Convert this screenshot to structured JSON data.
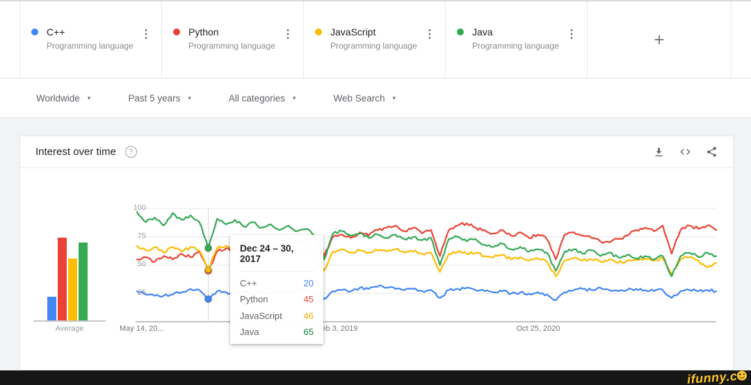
{
  "query_cards": [
    {
      "term": "C++",
      "subtitle": "Programming language",
      "color": "#4285f4"
    },
    {
      "term": "Python",
      "subtitle": "Programming language",
      "color": "#ea4335"
    },
    {
      "term": "JavaScript",
      "subtitle": "Programming language",
      "color": "#fbbc04"
    },
    {
      "term": "Java",
      "subtitle": "Programming language",
      "color": "#34a853"
    }
  ],
  "add_card": {
    "plus_label": "+"
  },
  "filters": [
    {
      "label": "Worldwide"
    },
    {
      "label": "Past 5 years"
    },
    {
      "label": "All categories"
    },
    {
      "label": "Web Search"
    }
  ],
  "panel": {
    "title": "Interest over time",
    "help_glyph": "?",
    "actions": [
      "download",
      "embed",
      "share"
    ]
  },
  "watermark": {
    "text": "ifunny.c",
    "color": "#fcc62c"
  },
  "chart_data": {
    "type": "line",
    "title": "Interest over time",
    "x_axis": {
      "ticks": [
        "May 14, 20...",
        "Feb 3, 2019",
        "Oct 25, 2020"
      ],
      "tick_weeks": [
        0,
        90,
        180
      ],
      "total_weeks": 260
    },
    "y_axis": {
      "ticks": [
        25,
        50,
        75,
        100
      ],
      "range": [
        0,
        100
      ],
      "grid": true
    },
    "tooltip": {
      "date_label": "Dec 24 – 30, 2017",
      "week": 32,
      "rows": [
        {
          "name": "C++",
          "value": 20,
          "color": "#4285f4"
        },
        {
          "name": "Python",
          "value": 45,
          "color": "#ea4335"
        },
        {
          "name": "JavaScript",
          "value": 46,
          "color": "#f9ab00"
        },
        {
          "name": "Java",
          "value": 65,
          "color": "#188038"
        }
      ]
    },
    "average_bars": {
      "label": "Average",
      "values": [
        {
          "name": "C++",
          "value": 22,
          "color": "#4285f4"
        },
        {
          "name": "Python",
          "value": 74,
          "color": "#ea4335"
        },
        {
          "name": "JavaScript",
          "value": 56,
          "color": "#fbbc04"
        },
        {
          "name": "Java",
          "value": 70,
          "color": "#34a853"
        }
      ]
    },
    "series": [
      {
        "name": "C++",
        "color": "#4285f4",
        "points": [
          [
            0,
            27
          ],
          [
            4,
            24
          ],
          [
            8,
            23
          ],
          [
            12,
            23
          ],
          [
            16,
            24
          ],
          [
            20,
            26
          ],
          [
            24,
            29
          ],
          [
            28,
            28
          ],
          [
            32,
            20
          ],
          [
            36,
            27
          ],
          [
            40,
            26
          ],
          [
            44,
            25
          ],
          [
            48,
            26
          ],
          [
            52,
            25
          ],
          [
            56,
            26
          ],
          [
            60,
            25
          ],
          [
            64,
            27
          ],
          [
            68,
            26
          ],
          [
            72,
            28
          ],
          [
            76,
            27
          ],
          [
            80,
            26
          ],
          [
            84,
            20
          ],
          [
            88,
            27
          ],
          [
            92,
            28
          ],
          [
            96,
            27
          ],
          [
            100,
            30
          ],
          [
            104,
            29
          ],
          [
            108,
            31
          ],
          [
            112,
            30
          ],
          [
            116,
            29
          ],
          [
            120,
            28
          ],
          [
            124,
            29
          ],
          [
            128,
            27
          ],
          [
            132,
            28
          ],
          [
            136,
            21
          ],
          [
            140,
            28
          ],
          [
            144,
            29
          ],
          [
            148,
            30
          ],
          [
            152,
            28
          ],
          [
            156,
            27
          ],
          [
            160,
            26
          ],
          [
            164,
            27
          ],
          [
            168,
            25
          ],
          [
            172,
            26
          ],
          [
            176,
            25
          ],
          [
            180,
            26
          ],
          [
            184,
            24
          ],
          [
            188,
            19
          ],
          [
            192,
            26
          ],
          [
            196,
            28
          ],
          [
            200,
            29
          ],
          [
            204,
            28
          ],
          [
            208,
            30
          ],
          [
            212,
            28
          ],
          [
            216,
            27
          ],
          [
            220,
            28
          ],
          [
            224,
            29
          ],
          [
            228,
            28
          ],
          [
            232,
            27
          ],
          [
            236,
            28
          ],
          [
            240,
            21
          ],
          [
            244,
            27
          ],
          [
            248,
            28
          ],
          [
            252,
            27
          ],
          [
            256,
            28
          ],
          [
            260,
            27
          ]
        ]
      },
      {
        "name": "Python",
        "color": "#ea4335",
        "points": [
          [
            0,
            55
          ],
          [
            4,
            57
          ],
          [
            8,
            53
          ],
          [
            12,
            58
          ],
          [
            16,
            55
          ],
          [
            20,
            60
          ],
          [
            24,
            57
          ],
          [
            28,
            62
          ],
          [
            32,
            45
          ],
          [
            36,
            62
          ],
          [
            40,
            65
          ],
          [
            44,
            62
          ],
          [
            48,
            66
          ],
          [
            52,
            63
          ],
          [
            56,
            67
          ],
          [
            60,
            64
          ],
          [
            64,
            68
          ],
          [
            68,
            66
          ],
          [
            72,
            70
          ],
          [
            76,
            73
          ],
          [
            80,
            76
          ],
          [
            84,
            58
          ],
          [
            88,
            75
          ],
          [
            92,
            77
          ],
          [
            96,
            74
          ],
          [
            100,
            79
          ],
          [
            104,
            76
          ],
          [
            108,
            81
          ],
          [
            112,
            83
          ],
          [
            116,
            85
          ],
          [
            120,
            80
          ],
          [
            124,
            83
          ],
          [
            128,
            78
          ],
          [
            132,
            81
          ],
          [
            136,
            58
          ],
          [
            140,
            81
          ],
          [
            144,
            85
          ],
          [
            148,
            87
          ],
          [
            152,
            83
          ],
          [
            156,
            81
          ],
          [
            160,
            78
          ],
          [
            164,
            81
          ],
          [
            168,
            76
          ],
          [
            172,
            79
          ],
          [
            176,
            74
          ],
          [
            180,
            77
          ],
          [
            184,
            73
          ],
          [
            188,
            55
          ],
          [
            192,
            77
          ],
          [
            196,
            79
          ],
          [
            200,
            76
          ],
          [
            204,
            74
          ],
          [
            208,
            71
          ],
          [
            212,
            70
          ],
          [
            216,
            73
          ],
          [
            220,
            76
          ],
          [
            224,
            81
          ],
          [
            228,
            83
          ],
          [
            232,
            80
          ],
          [
            236,
            85
          ],
          [
            240,
            60
          ],
          [
            244,
            81
          ],
          [
            248,
            85
          ],
          [
            252,
            82
          ],
          [
            256,
            85
          ],
          [
            260,
            81
          ]
        ]
      },
      {
        "name": "JavaScript",
        "color": "#fbbc04",
        "points": [
          [
            0,
            67
          ],
          [
            4,
            63
          ],
          [
            8,
            66
          ],
          [
            12,
            61
          ],
          [
            16,
            66
          ],
          [
            20,
            62
          ],
          [
            24,
            66
          ],
          [
            28,
            63
          ],
          [
            32,
            46
          ],
          [
            36,
            65
          ],
          [
            40,
            67
          ],
          [
            44,
            64
          ],
          [
            48,
            66
          ],
          [
            52,
            63
          ],
          [
            56,
            65
          ],
          [
            60,
            62
          ],
          [
            64,
            65
          ],
          [
            68,
            62
          ],
          [
            72,
            64
          ],
          [
            76,
            62
          ],
          [
            80,
            63
          ],
          [
            84,
            45
          ],
          [
            88,
            62
          ],
          [
            92,
            64
          ],
          [
            96,
            61
          ],
          [
            100,
            63
          ],
          [
            104,
            61
          ],
          [
            108,
            63
          ],
          [
            112,
            62
          ],
          [
            116,
            64
          ],
          [
            120,
            61
          ],
          [
            124,
            62
          ],
          [
            128,
            60
          ],
          [
            132,
            61
          ],
          [
            136,
            44
          ],
          [
            140,
            60
          ],
          [
            144,
            62
          ],
          [
            148,
            60
          ],
          [
            152,
            61
          ],
          [
            156,
            58
          ],
          [
            160,
            57
          ],
          [
            164,
            59
          ],
          [
            168,
            55
          ],
          [
            172,
            57
          ],
          [
            176,
            54
          ],
          [
            180,
            56
          ],
          [
            184,
            53
          ],
          [
            188,
            40
          ],
          [
            192,
            54
          ],
          [
            196,
            56
          ],
          [
            200,
            54
          ],
          [
            204,
            55
          ],
          [
            208,
            53
          ],
          [
            212,
            55
          ],
          [
            216,
            52
          ],
          [
            220,
            54
          ],
          [
            224,
            55
          ],
          [
            228,
            56
          ],
          [
            232,
            54
          ],
          [
            236,
            56
          ],
          [
            240,
            42
          ],
          [
            244,
            55
          ],
          [
            248,
            57
          ],
          [
            252,
            54
          ],
          [
            256,
            48
          ],
          [
            260,
            52
          ]
        ]
      },
      {
        "name": "Java",
        "color": "#34a853",
        "points": [
          [
            0,
            97
          ],
          [
            4,
            88
          ],
          [
            8,
            92
          ],
          [
            12,
            85
          ],
          [
            16,
            96
          ],
          [
            20,
            90
          ],
          [
            24,
            94
          ],
          [
            28,
            88
          ],
          [
            32,
            65
          ],
          [
            36,
            91
          ],
          [
            40,
            86
          ],
          [
            44,
            90
          ],
          [
            48,
            84
          ],
          [
            52,
            88
          ],
          [
            56,
            83
          ],
          [
            60,
            86
          ],
          [
            64,
            81
          ],
          [
            68,
            85
          ],
          [
            72,
            80
          ],
          [
            76,
            82
          ],
          [
            80,
            76
          ],
          [
            84,
            55
          ],
          [
            88,
            78
          ],
          [
            92,
            80
          ],
          [
            96,
            76
          ],
          [
            100,
            78
          ],
          [
            104,
            74
          ],
          [
            108,
            77
          ],
          [
            112,
            74
          ],
          [
            116,
            77
          ],
          [
            120,
            73
          ],
          [
            124,
            75
          ],
          [
            128,
            72
          ],
          [
            132,
            74
          ],
          [
            136,
            50
          ],
          [
            140,
            73
          ],
          [
            144,
            75
          ],
          [
            148,
            71
          ],
          [
            152,
            73
          ],
          [
            156,
            68
          ],
          [
            160,
            66
          ],
          [
            164,
            69
          ],
          [
            168,
            64
          ],
          [
            172,
            66
          ],
          [
            176,
            62
          ],
          [
            180,
            64
          ],
          [
            184,
            61
          ],
          [
            188,
            45
          ],
          [
            192,
            62
          ],
          [
            196,
            64
          ],
          [
            200,
            60
          ],
          [
            204,
            63
          ],
          [
            208,
            58
          ],
          [
            212,
            61
          ],
          [
            216,
            57
          ],
          [
            220,
            59
          ],
          [
            224,
            56
          ],
          [
            228,
            58
          ],
          [
            232,
            55
          ],
          [
            236,
            58
          ],
          [
            240,
            40
          ],
          [
            244,
            58
          ],
          [
            248,
            61
          ],
          [
            252,
            57
          ],
          [
            256,
            61
          ],
          [
            260,
            58
          ]
        ]
      }
    ]
  }
}
